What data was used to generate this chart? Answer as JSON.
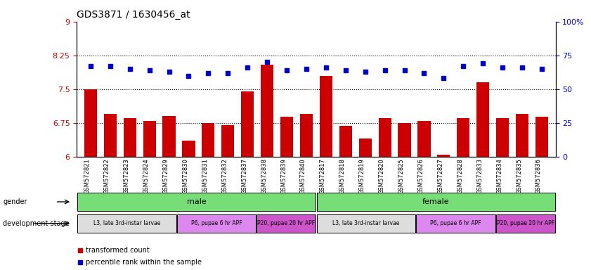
{
  "title": "GDS3871 / 1630456_at",
  "samples": [
    "GSM572821",
    "GSM572822",
    "GSM572823",
    "GSM572824",
    "GSM572829",
    "GSM572830",
    "GSM572831",
    "GSM572832",
    "GSM572837",
    "GSM572838",
    "GSM572839",
    "GSM572840",
    "GSM572817",
    "GSM572818",
    "GSM572819",
    "GSM572820",
    "GSM572825",
    "GSM572826",
    "GSM572827",
    "GSM572828",
    "GSM572833",
    "GSM572834",
    "GSM572835",
    "GSM572836"
  ],
  "bar_values": [
    7.5,
    6.95,
    6.85,
    6.8,
    6.9,
    6.35,
    6.75,
    6.7,
    7.45,
    8.05,
    6.88,
    6.95,
    7.8,
    6.68,
    6.4,
    6.85,
    6.75,
    6.8,
    6.05,
    6.85,
    7.65,
    6.85,
    6.95,
    6.88
  ],
  "percentile_values": [
    67,
    67,
    65,
    64,
    63,
    60,
    62,
    62,
    66,
    70,
    64,
    65,
    66,
    64,
    63,
    64,
    64,
    62,
    58,
    67,
    69,
    66,
    66,
    65
  ],
  "bar_color": "#cc0000",
  "percentile_color": "#0000cc",
  "ymin": 6.0,
  "ymax": 9.0,
  "yticks": [
    6,
    6.75,
    7.5,
    8.25,
    9
  ],
  "ytick_labels": [
    "6",
    "6.75",
    "7.5",
    "8.25",
    "9"
  ],
  "right_yticks": [
    0,
    25,
    50,
    75,
    100
  ],
  "right_ytick_labels": [
    "0",
    "25",
    "50",
    "75",
    "100%"
  ],
  "hlines": [
    6.75,
    7.5,
    8.25
  ],
  "gender_labels": [
    {
      "label": "male",
      "start": 0,
      "end": 12
    },
    {
      "label": "female",
      "start": 12,
      "end": 24
    }
  ],
  "dev_stage_labels": [
    {
      "label": "L3, late 3rd-instar larvae",
      "start": 0,
      "end": 5,
      "color": "#dddddd"
    },
    {
      "label": "P6, pupae 6 hr APF",
      "start": 5,
      "end": 9,
      "color": "#dd88ee"
    },
    {
      "label": "P20, pupae 20 hr APF",
      "start": 9,
      "end": 12,
      "color": "#cc55cc"
    },
    {
      "label": "L3, late 3rd-instar larvae",
      "start": 12,
      "end": 17,
      "color": "#dddddd"
    },
    {
      "label": "P6, pupae 6 hr APF",
      "start": 17,
      "end": 21,
      "color": "#dd88ee"
    },
    {
      "label": "P20, pupae 20 hr APF",
      "start": 21,
      "end": 24,
      "color": "#cc55cc"
    }
  ],
  "gender_color": "#77dd77",
  "legend_items": [
    {
      "label": "transformed count",
      "color": "#cc0000"
    },
    {
      "label": "percentile rank within the sample",
      "color": "#0000cc"
    }
  ],
  "fig_width": 8.41,
  "fig_height": 3.84,
  "dpi": 100
}
